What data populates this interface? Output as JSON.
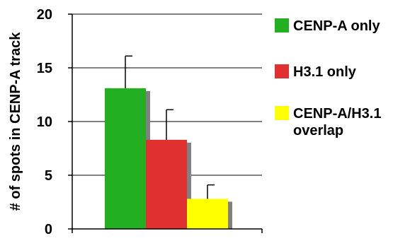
{
  "chart_data": {
    "type": "bar",
    "title": "",
    "xlabel": "",
    "ylabel": "# of spots in CENP-A track",
    "ylim": [
      0,
      20
    ],
    "yticks": [
      0,
      5,
      10,
      15,
      20
    ],
    "grid": true,
    "legend_position": "right",
    "series": [
      {
        "name": "CENP-A only",
        "value": 13.1,
        "error": 3.0,
        "color": "#22b022"
      },
      {
        "name": "H3.1 only",
        "value": 8.3,
        "error": 2.8,
        "color": "#e03030"
      },
      {
        "name": "CENP-A/H3.1 overlap",
        "legend_lines": [
          "CENP-A/H3.1",
          "overlap"
        ],
        "value": 2.8,
        "error": 1.3,
        "color": "#ffff00"
      }
    ]
  }
}
